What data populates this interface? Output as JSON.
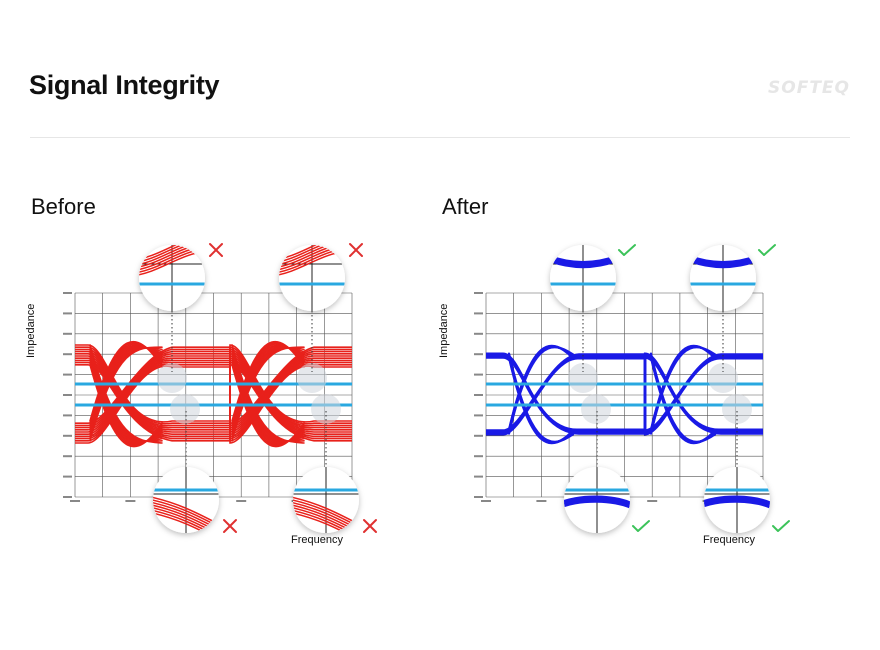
{
  "header": {
    "title": "Signal Integrity",
    "logo": "SOFTEQ"
  },
  "panels": [
    {
      "title": "Before",
      "y_axis_label": "Impedance",
      "x_axis_label": "Frequency",
      "trace_color": "#e8211b",
      "threshold_color": "#29a8e0",
      "status": "fail",
      "status_icon": "cross-icon",
      "status_color": "#e03131"
    },
    {
      "title": "After",
      "y_axis_label": "Impedance",
      "x_axis_label": "Frequency",
      "trace_color": "#1a1ae6",
      "threshold_color": "#29a8e0",
      "status": "pass",
      "status_icon": "check-icon",
      "status_color": "#3cc35a"
    }
  ]
}
